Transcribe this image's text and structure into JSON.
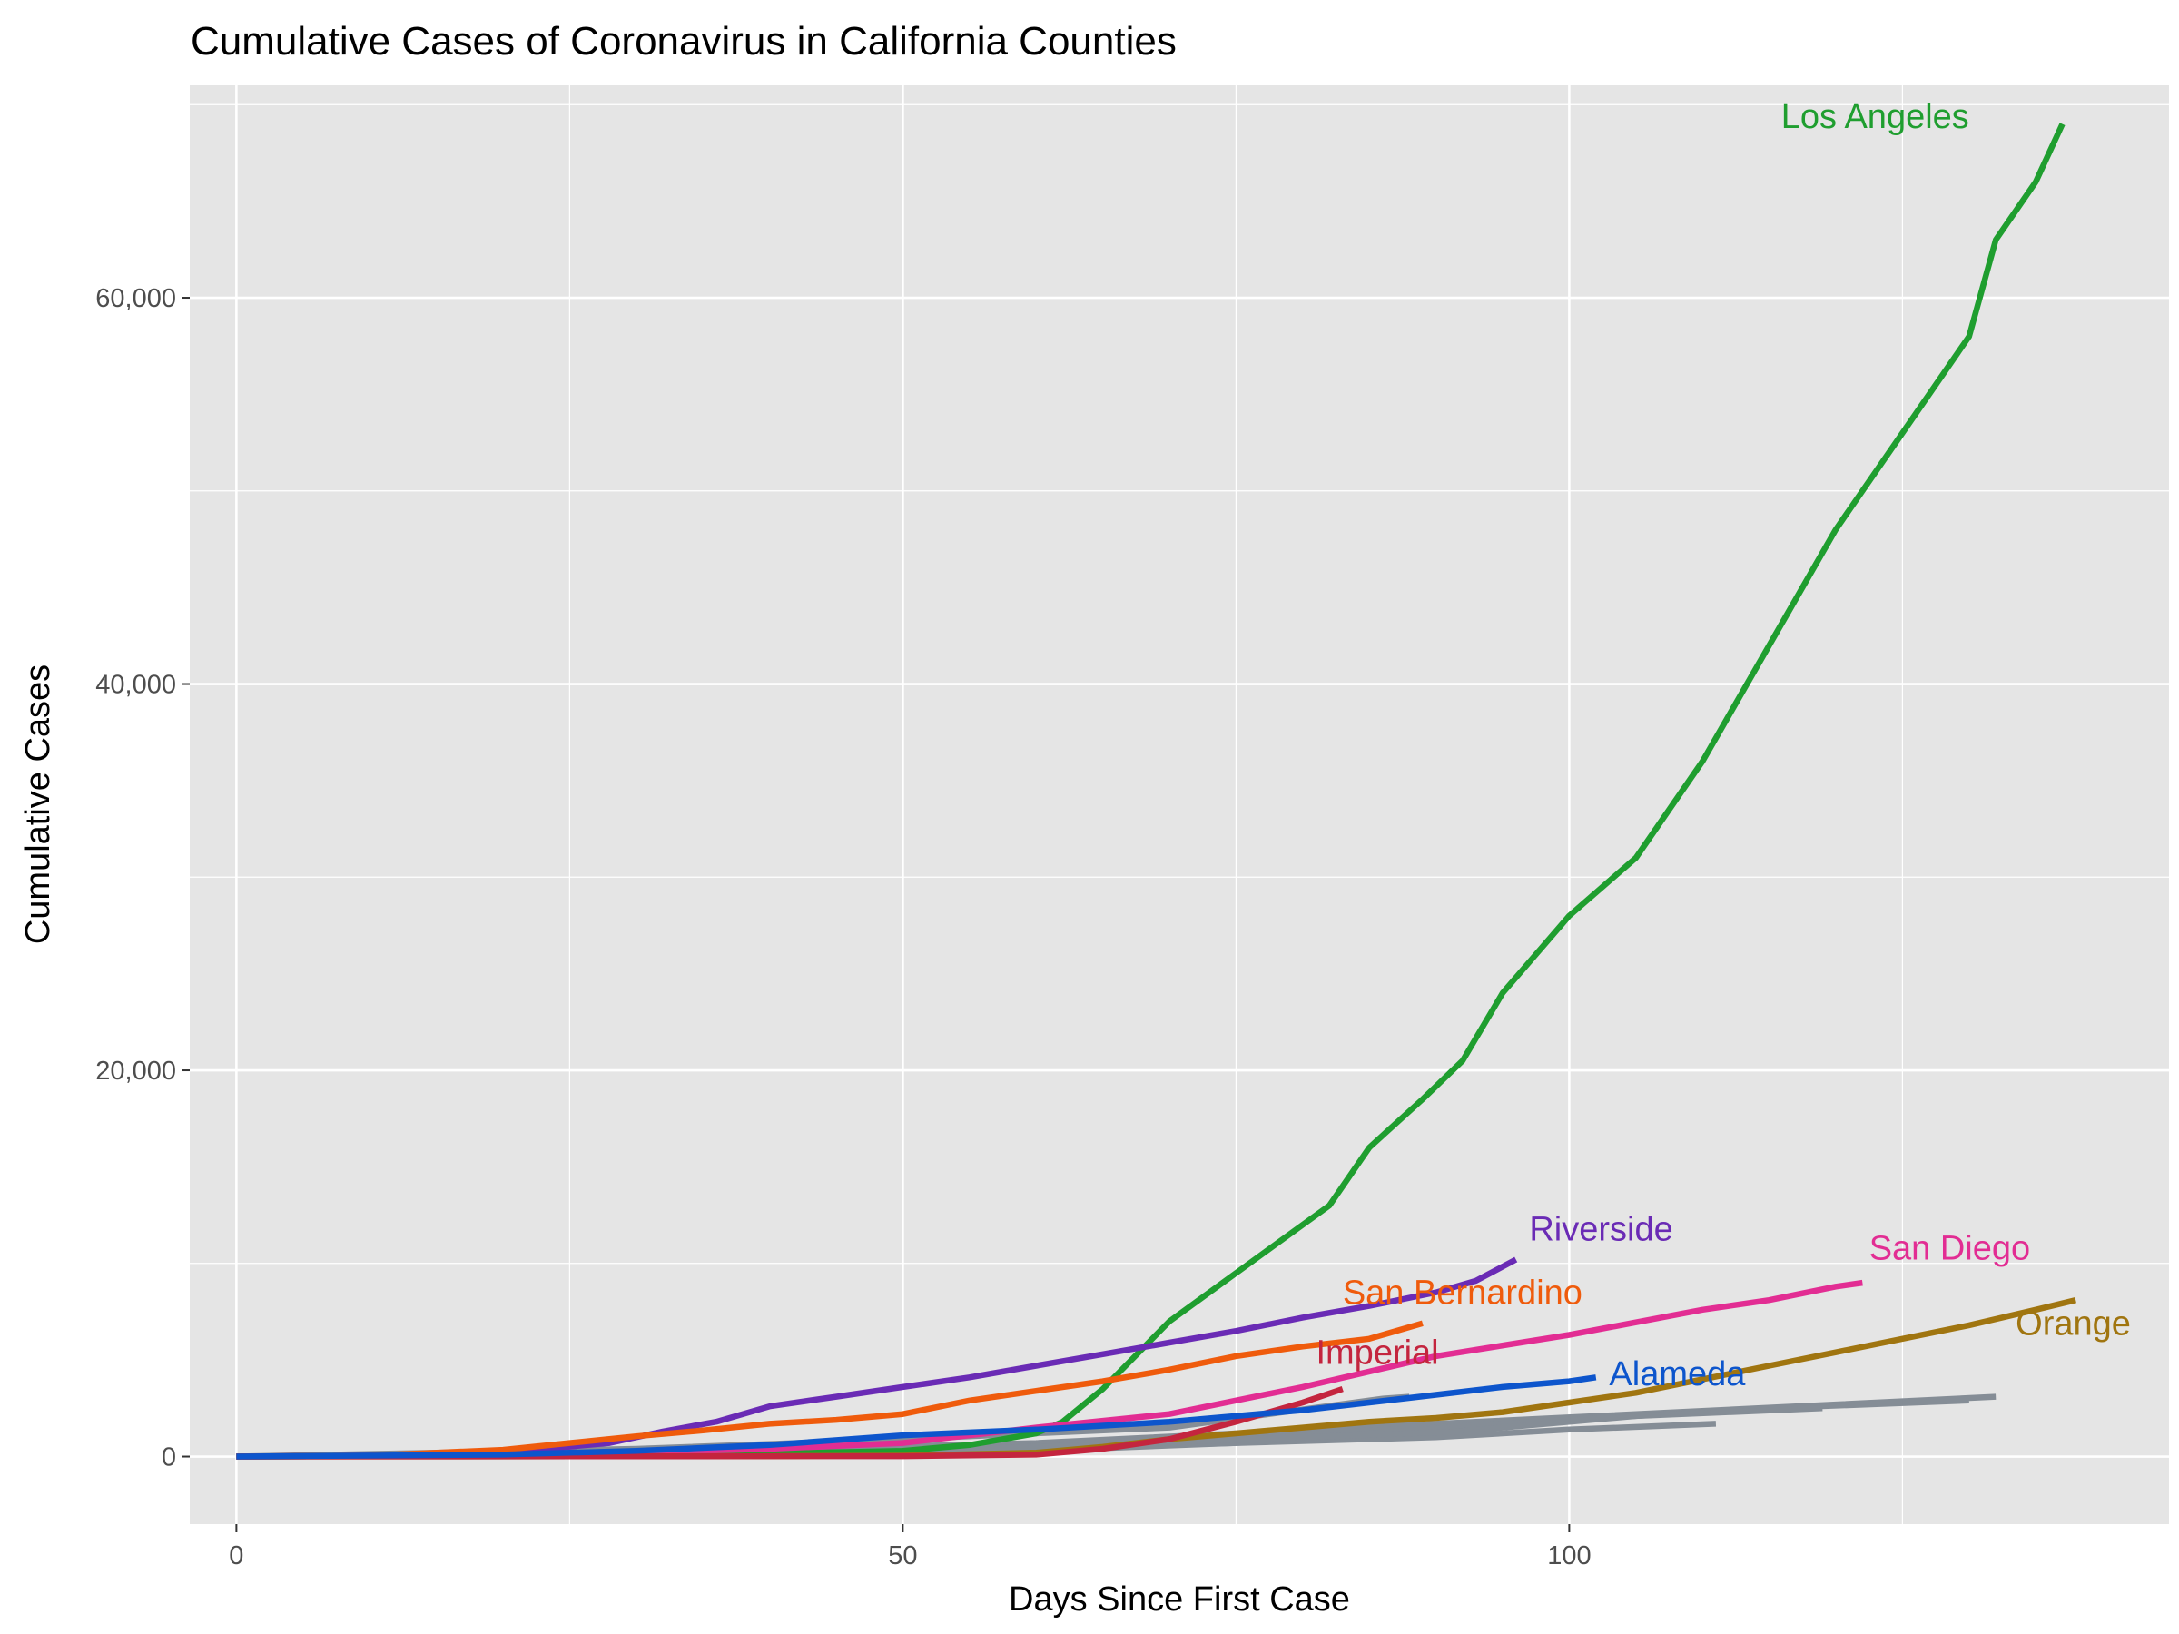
{
  "chart_data": {
    "type": "line",
    "title": "Cumulative Cases of Coronavirus in California Counties",
    "xlabel": "Days Since First Case",
    "ylabel": "Cumulative Cases",
    "xlim": [
      -3.5,
      145
    ],
    "ylim": [
      -3500,
      71000
    ],
    "x_ticks": [
      0,
      50,
      100
    ],
    "y_ticks": [
      0,
      20000,
      40000,
      60000
    ],
    "x_tick_labels": [
      "0",
      "50",
      "100"
    ],
    "y_tick_labels": [
      "0",
      "20,000",
      "40,000",
      "60,000"
    ],
    "grid": true,
    "legend": "none",
    "panel_background": "#e5e5e5",
    "grid_color": "#ffffff",
    "series": [
      {
        "name": "Los Angeles",
        "color": "#1f9e2f",
        "x": [
          0,
          20,
          40,
          50,
          55,
          60,
          62,
          65,
          70,
          75,
          78,
          82,
          85,
          89,
          92,
          95,
          100,
          105,
          110,
          115,
          120,
          125,
          130,
          132,
          135,
          137
        ],
        "y": [
          0,
          50,
          150,
          300,
          600,
          1200,
          1800,
          3500,
          7000,
          9500,
          11000,
          13000,
          16000,
          18500,
          20500,
          24000,
          28000,
          31000,
          36000,
          42000,
          48000,
          53000,
          58000,
          63000,
          66000,
          69000
        ]
      },
      {
        "name": "Riverside",
        "color": "#6a2bb5",
        "x": [
          0,
          10,
          20,
          28,
          32,
          36,
          40,
          45,
          50,
          55,
          60,
          65,
          70,
          75,
          80,
          85,
          90,
          93,
          96
        ],
        "y": [
          0,
          50,
          200,
          700,
          1300,
          1800,
          2600,
          3100,
          3600,
          4100,
          4700,
          5300,
          5900,
          6500,
          7200,
          7800,
          8500,
          9100,
          10200
        ]
      },
      {
        "name": "San Bernardino",
        "color": "#ef5b0c",
        "x": [
          0,
          10,
          20,
          25,
          30,
          35,
          40,
          45,
          50,
          55,
          60,
          65,
          70,
          75,
          80,
          85,
          89
        ],
        "y": [
          0,
          50,
          350,
          700,
          1050,
          1350,
          1700,
          1900,
          2200,
          2900,
          3400,
          3900,
          4500,
          5200,
          5700,
          6100,
          6900
        ]
      },
      {
        "name": "San Diego",
        "color": "#e22d93",
        "x": [
          0,
          10,
          20,
          30,
          40,
          50,
          60,
          70,
          80,
          90,
          100,
          110,
          115,
          120,
          122
        ],
        "y": [
          0,
          20,
          80,
          200,
          400,
          700,
          1500,
          2200,
          3600,
          5200,
          6300,
          7600,
          8100,
          8800,
          9000
        ]
      },
      {
        "name": "Orange",
        "color": "#a07510",
        "x": [
          0,
          40,
          50,
          60,
          65,
          70,
          75,
          80,
          85,
          90,
          95,
          100,
          105,
          110,
          115,
          120,
          125,
          130,
          135,
          138
        ],
        "y": [
          0,
          20,
          50,
          200,
          500,
          900,
          1200,
          1500,
          1800,
          2000,
          2300,
          2800,
          3300,
          4000,
          4700,
          5400,
          6100,
          6800,
          7600,
          8100
        ]
      },
      {
        "name": "Imperial",
        "color": "#c4253e",
        "x": [
          0,
          50,
          60,
          65,
          70,
          75,
          80,
          83
        ],
        "y": [
          0,
          20,
          100,
          400,
          900,
          1800,
          2800,
          3500
        ]
      },
      {
        "name": "Alameda",
        "color": "#0d55cc",
        "x": [
          0,
          20,
          30,
          40,
          50,
          60,
          70,
          80,
          85,
          90,
          95,
          100,
          102
        ],
        "y": [
          0,
          100,
          300,
          600,
          1100,
          1400,
          1800,
          2400,
          2800,
          3200,
          3600,
          3900,
          4100
        ]
      },
      {
        "name": "",
        "color": "#858d96",
        "x": [
          0,
          30,
          50,
          70,
          86,
          88
        ],
        "y": [
          0,
          400,
          900,
          1500,
          3000,
          3100
        ]
      },
      {
        "name": "",
        "color": "#858d96",
        "x": [
          0,
          30,
          60,
          90,
          120,
          132
        ],
        "y": [
          0,
          200,
          700,
          1700,
          2700,
          3100
        ]
      },
      {
        "name": "",
        "color": "#858d96",
        "x": [
          0,
          30,
          60,
          90,
          115,
          130
        ],
        "y": [
          0,
          150,
          600,
          1500,
          2500,
          2900
        ]
      },
      {
        "name": "",
        "color": "#858d96",
        "x": [
          0,
          30,
          60,
          90,
          105,
          119
        ],
        "y": [
          0,
          100,
          500,
          1200,
          2100,
          2500
        ]
      },
      {
        "name": "",
        "color": "#858d96",
        "x": [
          0,
          30,
          60,
          90,
          100,
          111
        ],
        "y": [
          0,
          80,
          400,
          1000,
          1400,
          1700
        ]
      },
      {
        "name": "",
        "color": "#858d96",
        "x": [
          0,
          30,
          60,
          75,
          85,
          91
        ],
        "y": [
          0,
          60,
          300,
          700,
          1200,
          1500
        ]
      },
      {
        "name": "",
        "color": "#858d96",
        "x": [
          0,
          40,
          60,
          80,
          92
        ],
        "y": [
          0,
          100,
          500,
          1000,
          1300
        ]
      }
    ],
    "annotations": [
      {
        "text": "Los Angeles",
        "x": 130,
        "y": 68800,
        "color": "#1f9e2f",
        "anchor": "end"
      },
      {
        "text": "Riverside",
        "x": 97,
        "y": 11200,
        "color": "#6a2bb5",
        "anchor": "start"
      },
      {
        "text": "San Bernardino",
        "x": 83,
        "y": 7900,
        "color": "#ef5b0c",
        "anchor": "start"
      },
      {
        "text": "San Diego",
        "x": 122.5,
        "y": 10200,
        "color": "#e22d93",
        "anchor": "start"
      },
      {
        "text": "Orange",
        "x": 133.5,
        "y": 6300,
        "color": "#a07510",
        "anchor": "start"
      },
      {
        "text": "Imperial",
        "x": 81,
        "y": 4800,
        "color": "#c4253e",
        "anchor": "start"
      },
      {
        "text": "Alameda",
        "x": 103,
        "y": 3700,
        "color": "#0d55cc",
        "anchor": "start"
      }
    ]
  }
}
